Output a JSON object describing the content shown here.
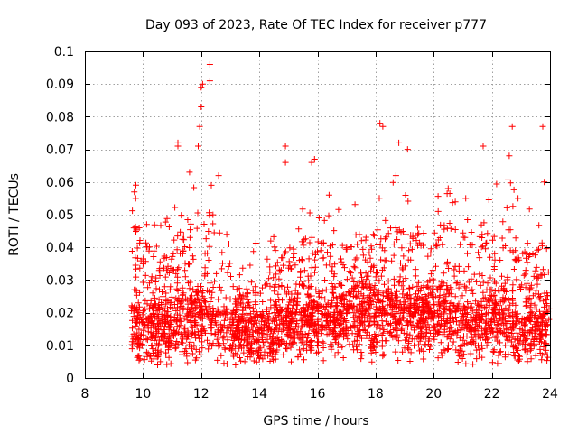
{
  "chart_data": {
    "type": "scatter",
    "title": "Day 093 of 2023, Rate Of TEC Index for receiver p777",
    "xlabel": "GPS time / hours",
    "ylabel": "ROTI / TECUs",
    "xlim": [
      8,
      24
    ],
    "ylim": [
      0,
      0.1
    ],
    "xticks": [
      "8",
      "10",
      "12",
      "14",
      "16",
      "18",
      "20",
      "22",
      "24"
    ],
    "yticks": [
      "0",
      "0.01",
      "0.02",
      "0.03",
      "0.04",
      "0.05",
      "0.06",
      "0.07",
      "0.08",
      "0.09",
      "0.1"
    ],
    "grid": true,
    "marker": "+",
    "color": "#ff0000",
    "envelope": {
      "x_start": 9.6,
      "x_end": 24,
      "baseline": [
        [
          9.6,
          0.016
        ],
        [
          10.5,
          0.015
        ],
        [
          11.5,
          0.017
        ],
        [
          12.3,
          0.019
        ],
        [
          13,
          0.015
        ],
        [
          14,
          0.013
        ],
        [
          15,
          0.016
        ],
        [
          16,
          0.018
        ],
        [
          17,
          0.019
        ],
        [
          18,
          0.019
        ],
        [
          19,
          0.018
        ],
        [
          20,
          0.018
        ],
        [
          21,
          0.017
        ],
        [
          22,
          0.017
        ],
        [
          23,
          0.016
        ],
        [
          24,
          0.015
        ]
      ],
      "upper": [
        [
          9.6,
          0.05
        ],
        [
          10,
          0.045
        ],
        [
          10.5,
          0.035
        ],
        [
          11,
          0.042
        ],
        [
          11.5,
          0.048
        ],
        [
          12,
          0.055
        ],
        [
          12.5,
          0.05
        ],
        [
          13,
          0.035
        ],
        [
          13.5,
          0.03
        ],
        [
          14,
          0.032
        ],
        [
          14.5,
          0.035
        ],
        [
          15,
          0.04
        ],
        [
          16,
          0.042
        ],
        [
          17,
          0.04
        ],
        [
          18,
          0.045
        ],
        [
          18.5,
          0.05
        ],
        [
          19,
          0.045
        ],
        [
          20,
          0.045
        ],
        [
          20.5,
          0.05
        ],
        [
          21,
          0.045
        ],
        [
          22,
          0.048
        ],
        [
          22.5,
          0.05
        ],
        [
          23,
          0.045
        ],
        [
          24,
          0.04
        ]
      ],
      "lower": 0.004
    },
    "notable_points": [
      {
        "x": 12.3,
        "y": 0.096
      },
      {
        "x": 12.3,
        "y": 0.091
      },
      {
        "x": 12.05,
        "y": 0.09
      },
      {
        "x": 12.0,
        "y": 0.089
      },
      {
        "x": 12.0,
        "y": 0.083
      },
      {
        "x": 11.95,
        "y": 0.077
      },
      {
        "x": 11.9,
        "y": 0.071
      },
      {
        "x": 11.2,
        "y": 0.072
      },
      {
        "x": 11.2,
        "y": 0.071
      },
      {
        "x": 14.9,
        "y": 0.071
      },
      {
        "x": 14.9,
        "y": 0.066
      },
      {
        "x": 15.8,
        "y": 0.066
      },
      {
        "x": 15.9,
        "y": 0.067
      },
      {
        "x": 18.15,
        "y": 0.078
      },
      {
        "x": 18.25,
        "y": 0.077
      },
      {
        "x": 18.8,
        "y": 0.072
      },
      {
        "x": 19.1,
        "y": 0.07
      },
      {
        "x": 21.7,
        "y": 0.071
      },
      {
        "x": 22.7,
        "y": 0.077
      },
      {
        "x": 22.6,
        "y": 0.068
      },
      {
        "x": 23.75,
        "y": 0.077
      },
      {
        "x": 23.8,
        "y": 0.06
      },
      {
        "x": 9.7,
        "y": 0.057
      },
      {
        "x": 9.75,
        "y": 0.055
      },
      {
        "x": 16.4,
        "y": 0.056
      },
      {
        "x": 21.1,
        "y": 0.055
      },
      {
        "x": 12.6,
        "y": 0.062
      },
      {
        "x": 11.6,
        "y": 0.063
      },
      {
        "x": 18.7,
        "y": 0.062
      },
      {
        "x": 20.5,
        "y": 0.058
      },
      {
        "x": 22.9,
        "y": 0.055
      },
      {
        "x": 10.5,
        "y": 0.004
      },
      {
        "x": 10.6,
        "y": 0.005
      },
      {
        "x": 14.0,
        "y": 0.006
      }
    ]
  }
}
